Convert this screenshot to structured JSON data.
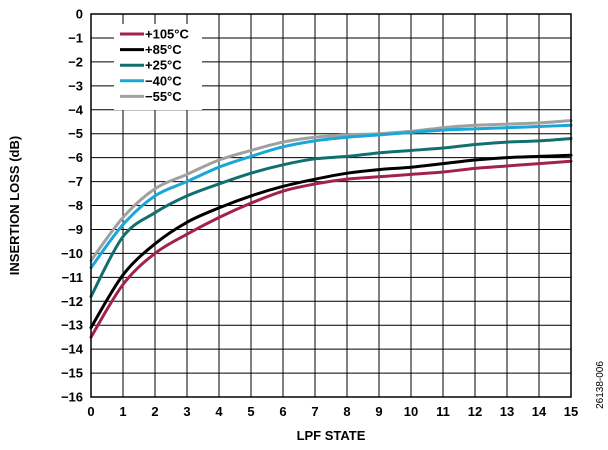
{
  "figure_id": "26138-006",
  "chart_data": {
    "type": "line",
    "title": "",
    "xlabel": "LPF STATE",
    "ylabel": "INSERTION LOSS (dB)",
    "xlim": [
      0,
      15
    ],
    "ylim": [
      -16,
      0
    ],
    "xticks": [
      0,
      1,
      2,
      3,
      4,
      5,
      6,
      7,
      8,
      9,
      10,
      11,
      12,
      13,
      14,
      15
    ],
    "yticks": [
      0,
      -1,
      -2,
      -3,
      -4,
      -5,
      -6,
      -7,
      -8,
      -9,
      -10,
      -11,
      -12,
      -13,
      -14,
      -15,
      -16
    ],
    "grid": true,
    "legend_position": "top-left",
    "x": [
      0,
      1,
      2,
      3,
      4,
      5,
      6,
      7,
      8,
      9,
      10,
      11,
      12,
      13,
      14,
      15
    ],
    "series": [
      {
        "name": "+105°C",
        "color": "#a3224d",
        "values": [
          -13.5,
          -11.3,
          -10.0,
          -9.2,
          -8.5,
          -7.9,
          -7.4,
          -7.1,
          -6.9,
          -6.8,
          -6.7,
          -6.6,
          -6.45,
          -6.35,
          -6.25,
          -6.15
        ]
      },
      {
        "name": "+85°C",
        "color": "#000000",
        "values": [
          -13.1,
          -10.9,
          -9.6,
          -8.7,
          -8.1,
          -7.6,
          -7.2,
          -6.9,
          -6.65,
          -6.5,
          -6.4,
          -6.25,
          -6.1,
          -6.0,
          -5.95,
          -5.9
        ]
      },
      {
        "name": "+25°C",
        "color": "#11706f",
        "values": [
          -11.8,
          -9.3,
          -8.3,
          -7.6,
          -7.1,
          -6.65,
          -6.3,
          -6.05,
          -5.95,
          -5.8,
          -5.7,
          -5.6,
          -5.45,
          -5.35,
          -5.3,
          -5.2
        ]
      },
      {
        "name": "−40°C",
        "color": "#1aa7d8",
        "values": [
          -10.6,
          -8.8,
          -7.6,
          -7.0,
          -6.4,
          -5.95,
          -5.55,
          -5.3,
          -5.15,
          -5.05,
          -4.95,
          -4.85,
          -4.8,
          -4.75,
          -4.7,
          -4.65
        ]
      },
      {
        "name": "−55°C",
        "color": "#a0a0a0",
        "values": [
          -10.3,
          -8.5,
          -7.3,
          -6.7,
          -6.1,
          -5.7,
          -5.35,
          -5.15,
          -5.05,
          -5.0,
          -4.9,
          -4.75,
          -4.65,
          -4.6,
          -4.55,
          -4.45
        ]
      }
    ]
  }
}
